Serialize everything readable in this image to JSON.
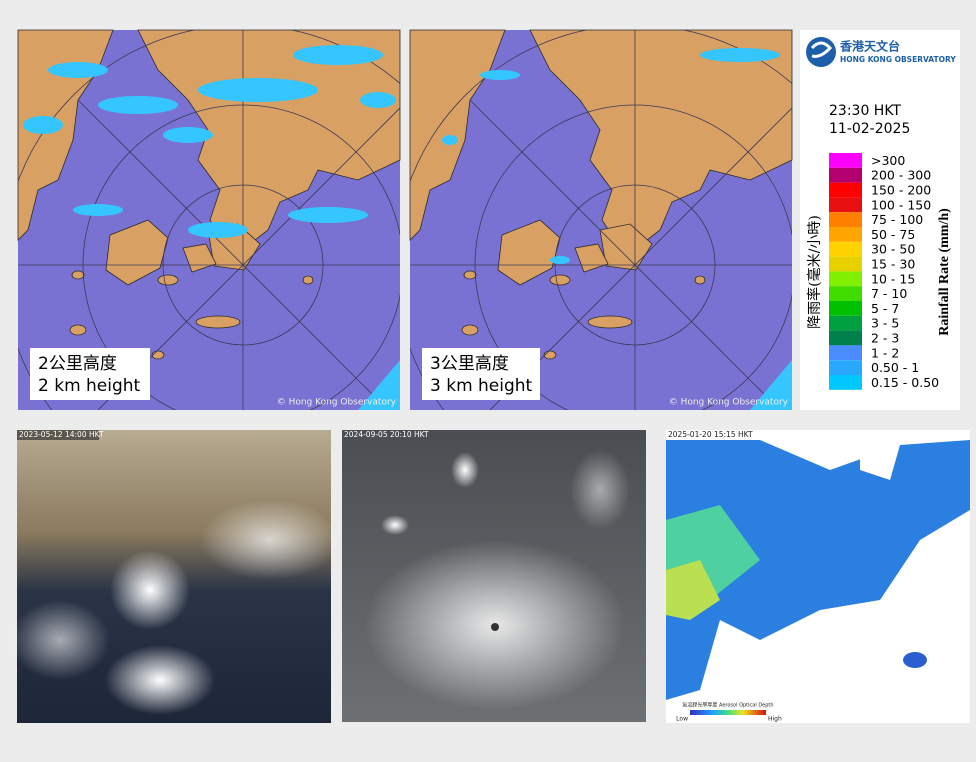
{
  "radar_panels": [
    {
      "label_zh": "2公里高度",
      "label_en": "2 km height",
      "credit": "© Hong Kong Observatory"
    },
    {
      "label_zh": "3公里高度",
      "label_en": "3 km height",
      "credit": "© Hong Kong Observatory"
    }
  ],
  "legend": {
    "logo_zh": "香港天文台",
    "logo_en": "HONG KONG OBSERVATORY",
    "time": "23:30 HKT",
    "date": "11-02-2025",
    "title_zh": "降雨率(毫米/小時)",
    "title_en": "Rainfall Rate (mm/h)",
    "scale": [
      {
        "label": ">300",
        "color": "#ff00ff"
      },
      {
        "label": "200 - 300",
        "color": "#b4006e"
      },
      {
        "label": "150 - 200",
        "color": "#ff0000"
      },
      {
        "label": "100 - 150",
        "color": "#e81010"
      },
      {
        "label": "75 - 100",
        "color": "#ff8000"
      },
      {
        "label": "50 - 75",
        "color": "#ffa400"
      },
      {
        "label": "30 - 50",
        "color": "#ffd200"
      },
      {
        "label": "15 - 30",
        "color": "#e6d000"
      },
      {
        "label": "10 - 15",
        "color": "#80f000"
      },
      {
        "label": "7 - 10",
        "color": "#40dc00"
      },
      {
        "label": "5 - 7",
        "color": "#00c000"
      },
      {
        "label": "3 - 5",
        "color": "#00a040"
      },
      {
        "label": "2 - 3",
        "color": "#00804a"
      },
      {
        "label": "1 - 2",
        "color": "#4a8cff"
      },
      {
        "label": "0.50 - 1",
        "color": "#2aa8ff"
      },
      {
        "label": "0.15 - 0.50",
        "color": "#00c8ff"
      }
    ]
  },
  "satellite_panels": [
    {
      "timestamp": "2023-05-12 14:00 HKT"
    },
    {
      "timestamp": "2024-09-05 20:10 HKT"
    },
    {
      "timestamp": "2025-01-20 15:15 HKT",
      "colorbar_title": "氣溶膠光學厚度 Aerosol Optical Depth",
      "low": "Low",
      "high": "High"
    }
  ]
}
